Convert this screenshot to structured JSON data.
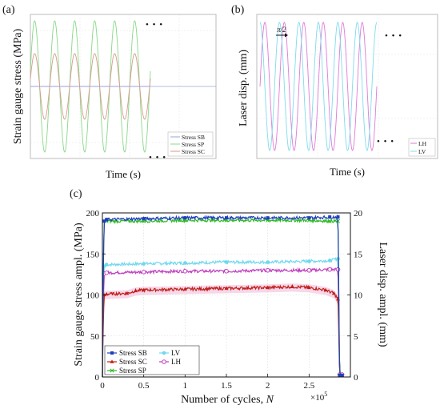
{
  "chart_data": [
    {
      "panel": "(a)",
      "type": "line",
      "xlabel": "Time (s)",
      "ylabel": "Strain gauge stress (MPa)",
      "continuation_marks": [
        "• • •",
        "• • •"
      ],
      "periods_shown": 6,
      "series": [
        {
          "name": "Stress SB",
          "color": "#9aa6d6",
          "relative_amplitude": 0.0
        },
        {
          "name": "Stress SP",
          "color": "#88d888",
          "relative_amplitude": 1.0
        },
        {
          "name": "Stress SC",
          "color": "#d99a8a",
          "relative_amplitude": 0.5
        }
      ]
    },
    {
      "panel": "(b)",
      "type": "line",
      "xlabel": "Time (s)",
      "ylabel": "Laser disp. (mm)",
      "phase_annotation": "π/2",
      "continuation_marks": [
        "• • •",
        "• • •"
      ],
      "periods_shown": 6,
      "series": [
        {
          "name": "LH",
          "color": "#e07ad8",
          "phase_offset": 0.25
        },
        {
          "name": "LV",
          "color": "#7fdcec",
          "phase_offset": 0.0
        }
      ]
    },
    {
      "panel": "(c)",
      "type": "line",
      "xlabel": "Number of cycles, ",
      "xlabel_italic": "N",
      "x_scale_label": "×10",
      "x_scale_exp": "5",
      "ylabel_left": "Strain gauge  stress ampl. (MPa)",
      "ylabel_right": "Laser disp. ampl. (mm)",
      "xlim": [
        0,
        3.0
      ],
      "ylim_left": [
        0,
        200
      ],
      "ylim_right": [
        0,
        20
      ],
      "x_ticks": [
        "0",
        "0.5",
        "1",
        "1.5",
        "2",
        "2.5"
      ],
      "x_tick_values": [
        0,
        0.5,
        1,
        1.5,
        2,
        2.5
      ],
      "y_ticks_left": [
        "0",
        "50",
        "100",
        "150",
        "200"
      ],
      "y_tick_values_left": [
        0,
        50,
        100,
        150,
        200
      ],
      "y_ticks_right": [
        "0",
        "5",
        "10",
        "15",
        "20"
      ],
      "y_tick_values_right": [
        0,
        5,
        10,
        15,
        20
      ],
      "grid": true,
      "legend_position": "bottom-left",
      "series": [
        {
          "name": "Stress SB",
          "axis": "left",
          "color": "#1f3fbf",
          "marker": "square",
          "x": [
            0,
            0.01,
            0.02,
            0.05,
            0.5,
            1.0,
            1.5,
            2.0,
            2.5,
            2.75,
            2.85,
            2.87,
            2.9
          ],
          "y": [
            0,
            120,
            190,
            192,
            193,
            194,
            194,
            194,
            194,
            195,
            195,
            2,
            2
          ]
        },
        {
          "name": "Stress SC",
          "axis": "left",
          "color": "#c02018",
          "marker": "triangle",
          "x": [
            0,
            0.01,
            0.02,
            0.05,
            0.3,
            0.4,
            0.5,
            1.0,
            1.5,
            2.0,
            2.3,
            2.5,
            2.7,
            2.8,
            2.85,
            2.87,
            2.9
          ],
          "y": [
            0,
            60,
            100,
            101,
            102,
            105,
            106,
            107,
            108,
            109,
            110,
            109,
            106,
            102,
            95,
            2,
            2
          ]
        },
        {
          "name": "Stress SP",
          "axis": "left",
          "color": "#2ab820",
          "marker": "cross",
          "x": [
            0,
            0.01,
            0.02,
            0.05,
            0.5,
            1.0,
            1.5,
            2.0,
            2.5,
            2.75,
            2.85,
            2.87,
            2.9
          ],
          "y": [
            0,
            130,
            190,
            190,
            190,
            191,
            191,
            191,
            191,
            190,
            190,
            2,
            2
          ]
        },
        {
          "name": "LV",
          "axis": "right",
          "color": "#6fd8ee",
          "marker": "circle-filled",
          "x": [
            0,
            0.01,
            0.02,
            0.05,
            0.5,
            1.0,
            1.5,
            2.0,
            2.5,
            2.75,
            2.85,
            2.87,
            2.9
          ],
          "y": [
            0,
            9,
            13.5,
            13.7,
            13.8,
            13.9,
            14.0,
            14.0,
            14.1,
            14.2,
            14.4,
            0.3,
            0.3
          ]
        },
        {
          "name": "LH",
          "axis": "right",
          "color": "#c040c0",
          "marker": "circle-open",
          "x": [
            0,
            0.01,
            0.02,
            0.05,
            0.5,
            1.0,
            1.5,
            2.0,
            2.5,
            2.75,
            2.85,
            2.87,
            2.9
          ],
          "y": [
            0,
            8,
            12.6,
            12.7,
            12.8,
            12.9,
            12.9,
            13.0,
            13.0,
            13.1,
            13.1,
            0.3,
            0.3
          ]
        }
      ]
    }
  ]
}
